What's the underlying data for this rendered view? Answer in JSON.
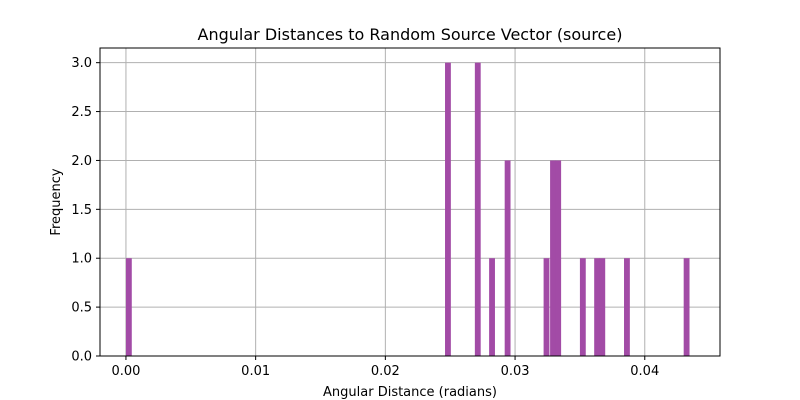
{
  "chart_data": {
    "type": "bar",
    "title": "Angular Distances to Random Source Vector (source)",
    "xlabel": "Angular Distance (radians)",
    "ylabel": "Frequency",
    "xlim": [
      -0.002,
      0.0458
    ],
    "ylim": [
      0,
      3.15
    ],
    "grid": true,
    "bar_color": "#a24ba6",
    "bin_width": 0.00045,
    "x_ticks": [
      0.0,
      0.01,
      0.02,
      0.03,
      0.04
    ],
    "x_tick_labels": [
      "0.00",
      "0.01",
      "0.02",
      "0.03",
      "0.04"
    ],
    "y_ticks": [
      0.0,
      0.5,
      1.0,
      1.5,
      2.0,
      2.5,
      3.0
    ],
    "y_tick_labels": [
      "0.0",
      "0.5",
      "1.0",
      "1.5",
      "2.0",
      "2.5",
      "3.0"
    ],
    "bins": [
      {
        "x": 0.0,
        "count": 1
      },
      {
        "x": 0.0246,
        "count": 3
      },
      {
        "x": 0.0269,
        "count": 3
      },
      {
        "x": 0.028,
        "count": 1
      },
      {
        "x": 0.0292,
        "count": 2
      },
      {
        "x": 0.0322,
        "count": 1
      },
      {
        "x": 0.0327,
        "count": 2
      },
      {
        "x": 0.0331,
        "count": 2
      },
      {
        "x": 0.035,
        "count": 1
      },
      {
        "x": 0.0361,
        "count": 1
      },
      {
        "x": 0.0365,
        "count": 1
      },
      {
        "x": 0.0384,
        "count": 1
      },
      {
        "x": 0.043,
        "count": 1
      }
    ]
  }
}
